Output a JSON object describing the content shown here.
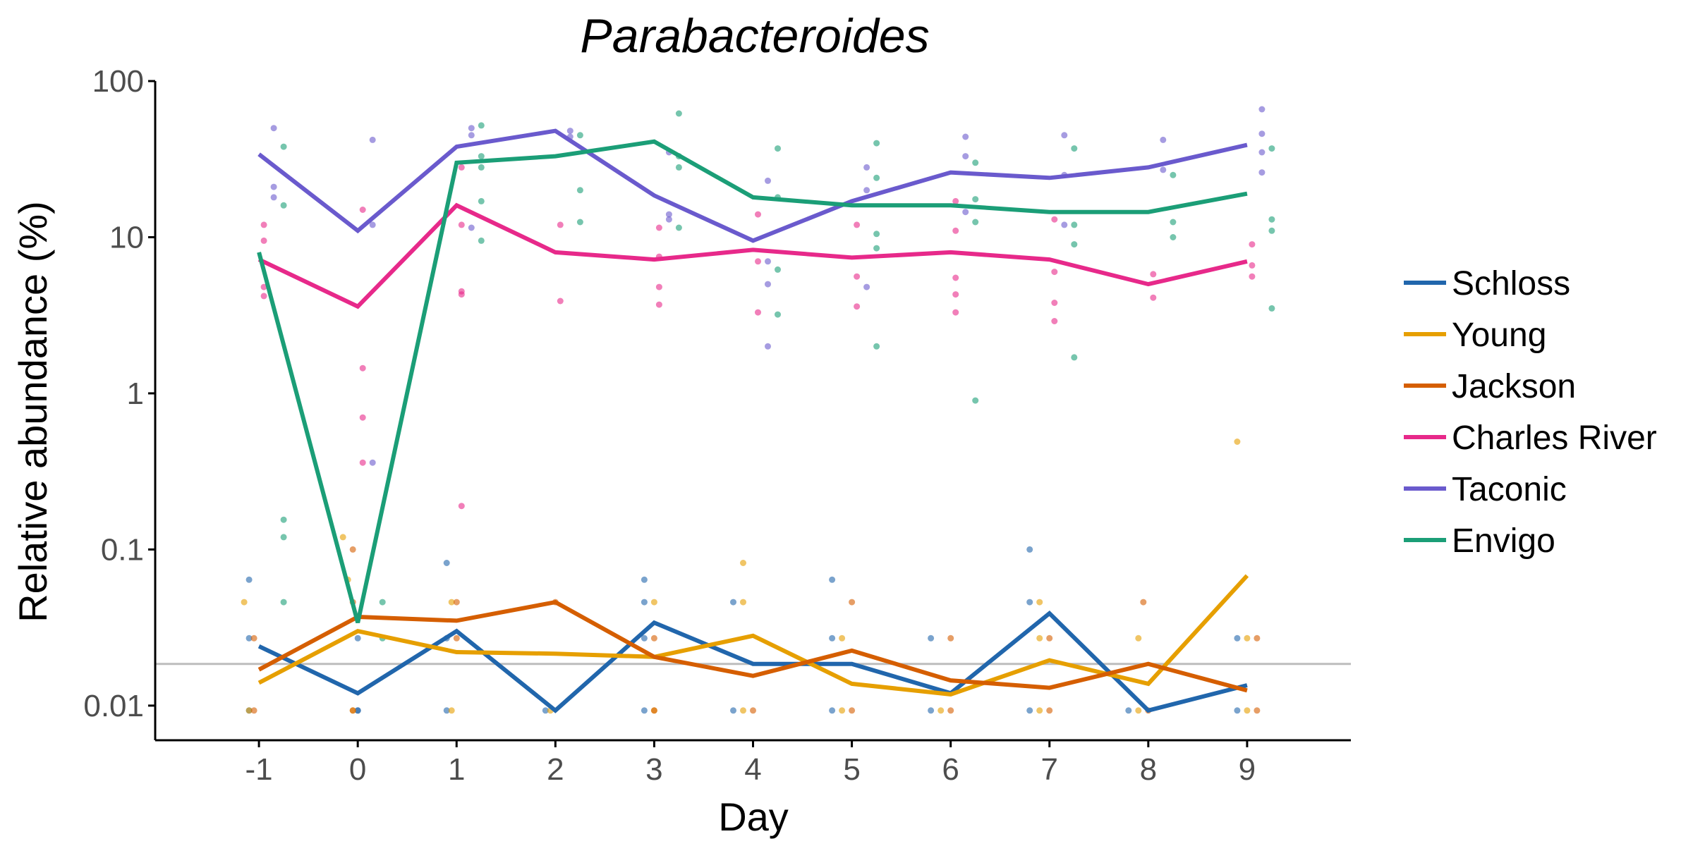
{
  "chart_data": {
    "type": "line",
    "title": "Parabacteroides",
    "xlabel": "Day",
    "ylabel": "Relative abundance (%)",
    "yscale": "log",
    "ylim": [
      0.006,
      100
    ],
    "xlim": [
      -2.05,
      10.05
    ],
    "x": [
      -1,
      0,
      1,
      2,
      3,
      4,
      5,
      6,
      7,
      8,
      9
    ],
    "xticks": [
      "-1",
      "0",
      "1",
      "2",
      "3",
      "4",
      "5",
      "6",
      "7",
      "8",
      "9"
    ],
    "yticks": [
      {
        "value": 0.01,
        "label": "0.01"
      },
      {
        "value": 0.1,
        "label": "0.1"
      },
      {
        "value": 1,
        "label": "1"
      },
      {
        "value": 10,
        "label": "10"
      },
      {
        "value": 100,
        "label": "100"
      }
    ],
    "reference_line": {
      "y": 0.0185,
      "color": "#bdbdbd"
    },
    "legend_position": "right",
    "grid": false,
    "series": [
      {
        "name": "Schloss",
        "color": "#2166ac",
        "values": [
          0.024,
          0.012,
          0.03,
          0.0093,
          0.034,
          0.0185,
          0.0185,
          0.012,
          0.039,
          0.0093,
          0.0135
        ]
      },
      {
        "name": "Young",
        "color": "#e69f00",
        "values": [
          0.014,
          0.03,
          0.022,
          0.0215,
          0.0205,
          0.028,
          0.0138,
          0.0118,
          0.0195,
          0.0138,
          0.068
        ]
      },
      {
        "name": "Jackson",
        "color": "#d55e00",
        "values": [
          0.017,
          0.037,
          0.035,
          0.046,
          0.0205,
          0.0155,
          0.0225,
          0.0145,
          0.013,
          0.0185,
          0.0125
        ]
      },
      {
        "name": "Charles River",
        "color": "#e7298a",
        "values": [
          7.2,
          3.6,
          16.0,
          8.0,
          7.2,
          8.3,
          7.4,
          8.0,
          7.2,
          5.0,
          7.0
        ]
      },
      {
        "name": "Taconic",
        "color": "#6a5acd",
        "values": [
          34.0,
          11.0,
          38.0,
          48.0,
          18.5,
          9.5,
          17.0,
          26.0,
          24.0,
          28.0,
          39.0
        ]
      },
      {
        "name": "Envigo",
        "color": "#1b9e77",
        "values": [
          8.0,
          0.034,
          30.0,
          33.0,
          41.0,
          18.0,
          16.0,
          16.0,
          14.5,
          14.5,
          19.0
        ]
      }
    ],
    "points": [
      {
        "series": 0,
        "pts": [
          [
            -1.1,
            0.064
          ],
          [
            -1.1,
            0.027
          ],
          [
            -1.1,
            0.0093
          ],
          [
            0,
            0.027
          ],
          [
            0,
            0.0093
          ],
          [
            0,
            0.0093
          ],
          [
            0.9,
            0.082
          ],
          [
            0.9,
            0.027
          ],
          [
            0.9,
            0.0093
          ],
          [
            1.9,
            0.0093
          ],
          [
            2.9,
            0.064
          ],
          [
            2.9,
            0.046
          ],
          [
            2.9,
            0.027
          ],
          [
            2.9,
            0.0093
          ],
          [
            3.8,
            0.046
          ],
          [
            3.8,
            0.0093
          ],
          [
            4.8,
            0.064
          ],
          [
            4.8,
            0.027
          ],
          [
            4.8,
            0.0093
          ],
          [
            5.8,
            0.027
          ],
          [
            5.8,
            0.0093
          ],
          [
            6.8,
            0.1
          ],
          [
            6.8,
            0.046
          ],
          [
            6.8,
            0.0093
          ],
          [
            7.8,
            0.0093
          ],
          [
            8.9,
            0.027
          ],
          [
            8.9,
            0.0093
          ]
        ]
      },
      {
        "series": 1,
        "pts": [
          [
            -1.15,
            0.046
          ],
          [
            -1.1,
            0.0093
          ],
          [
            -0.15,
            0.12
          ],
          [
            -0.1,
            0.064
          ],
          [
            -0.05,
            0.0093
          ],
          [
            0.95,
            0.046
          ],
          [
            0.95,
            0.0093
          ],
          [
            1.95,
            0.0093
          ],
          [
            3.0,
            0.046
          ],
          [
            3.0,
            0.0093
          ],
          [
            3.9,
            0.082
          ],
          [
            3.9,
            0.046
          ],
          [
            3.9,
            0.0093
          ],
          [
            4.9,
            0.027
          ],
          [
            4.9,
            0.0093
          ],
          [
            5.9,
            0.0093
          ],
          [
            6.9,
            0.046
          ],
          [
            6.9,
            0.027
          ],
          [
            6.9,
            0.0093
          ],
          [
            7.9,
            0.027
          ],
          [
            7.9,
            0.0093
          ],
          [
            8.9,
            0.49
          ],
          [
            9.0,
            0.027
          ],
          [
            9.0,
            0.0093
          ]
        ]
      },
      {
        "series": 2,
        "pts": [
          [
            -1.05,
            0.027
          ],
          [
            -1.05,
            0.0093
          ],
          [
            -0.05,
            0.1
          ],
          [
            -0.05,
            0.046
          ],
          [
            -0.05,
            0.0093
          ],
          [
            1.0,
            0.046
          ],
          [
            1.0,
            0.027
          ],
          [
            2.0,
            0.046
          ],
          [
            3.0,
            0.027
          ],
          [
            3.0,
            0.0093
          ],
          [
            4.0,
            0.0093
          ],
          [
            5.0,
            0.046
          ],
          [
            5.0,
            0.0093
          ],
          [
            6.0,
            0.027
          ],
          [
            6.0,
            0.0093
          ],
          [
            7.0,
            0.027
          ],
          [
            7.0,
            0.0093
          ],
          [
            7.95,
            0.046
          ],
          [
            8.0,
            0.0093
          ],
          [
            9.1,
            0.027
          ],
          [
            9.1,
            0.0093
          ]
        ]
      },
      {
        "series": 3,
        "pts": [
          [
            -0.95,
            12.0
          ],
          [
            -0.95,
            9.5
          ],
          [
            -0.95,
            4.8
          ],
          [
            -0.95,
            4.2
          ],
          [
            0.05,
            15.0
          ],
          [
            0.05,
            1.45
          ],
          [
            0.05,
            0.7
          ],
          [
            0.05,
            0.36
          ],
          [
            1.05,
            28.0
          ],
          [
            1.05,
            12.0
          ],
          [
            1.05,
            4.5
          ],
          [
            1.05,
            4.3
          ],
          [
            1.05,
            0.19
          ],
          [
            2.05,
            12.0
          ],
          [
            2.05,
            3.9
          ],
          [
            3.05,
            11.5
          ],
          [
            3.05,
            7.5
          ],
          [
            3.05,
            4.8
          ],
          [
            3.05,
            3.7
          ],
          [
            4.05,
            14.0
          ],
          [
            4.05,
            7.0
          ],
          [
            4.05,
            3.3
          ],
          [
            5.05,
            12.0
          ],
          [
            5.05,
            5.6
          ],
          [
            5.05,
            3.6
          ],
          [
            6.05,
            17.0
          ],
          [
            6.05,
            11.0
          ],
          [
            6.05,
            5.5
          ],
          [
            6.05,
            4.3
          ],
          [
            6.05,
            3.3
          ],
          [
            7.05,
            13.0
          ],
          [
            7.05,
            6.0
          ],
          [
            7.05,
            3.8
          ],
          [
            7.05,
            2.9
          ],
          [
            8.05,
            5.8
          ],
          [
            8.05,
            4.1
          ],
          [
            9.05,
            9.0
          ],
          [
            9.05,
            6.6
          ],
          [
            9.05,
            5.6
          ]
        ]
      },
      {
        "series": 4,
        "pts": [
          [
            -0.85,
            50.0
          ],
          [
            -0.85,
            21.0
          ],
          [
            -0.85,
            18.0
          ],
          [
            0.15,
            42.0
          ],
          [
            0.15,
            12.0
          ],
          [
            0.15,
            0.36
          ],
          [
            1.15,
            50.0
          ],
          [
            1.15,
            45.0
          ],
          [
            1.15,
            11.5
          ],
          [
            2.15,
            48.0
          ],
          [
            2.15,
            44.0
          ],
          [
            3.15,
            35.0
          ],
          [
            3.15,
            14.0
          ],
          [
            3.15,
            13.0
          ],
          [
            4.15,
            23.0
          ],
          [
            4.15,
            7.0
          ],
          [
            4.15,
            5.0
          ],
          [
            4.15,
            2.0
          ],
          [
            5.15,
            28.0
          ],
          [
            5.15,
            20.0
          ],
          [
            5.15,
            4.8
          ],
          [
            6.15,
            44.0
          ],
          [
            6.15,
            33.0
          ],
          [
            6.15,
            14.5
          ],
          [
            7.15,
            45.0
          ],
          [
            7.15,
            25.0
          ],
          [
            7.15,
            12.0
          ],
          [
            8.15,
            42.0
          ],
          [
            8.15,
            27.0
          ],
          [
            9.15,
            66.0
          ],
          [
            9.15,
            46.0
          ],
          [
            9.15,
            35.0
          ],
          [
            9.15,
            26.0
          ]
        ]
      },
      {
        "series": 5,
        "pts": [
          [
            -0.75,
            38.0
          ],
          [
            -0.75,
            16.0
          ],
          [
            -0.75,
            0.155
          ],
          [
            -0.75,
            0.12
          ],
          [
            -0.75,
            0.046
          ],
          [
            0.25,
            0.046
          ],
          [
            0.25,
            0.027
          ],
          [
            1.25,
            52.0
          ],
          [
            1.25,
            33.0
          ],
          [
            1.25,
            28.0
          ],
          [
            1.25,
            17.0
          ],
          [
            1.25,
            9.5
          ],
          [
            2.25,
            45.0
          ],
          [
            2.25,
            20.0
          ],
          [
            2.25,
            12.5
          ],
          [
            3.25,
            62.0
          ],
          [
            3.25,
            33.0
          ],
          [
            3.25,
            28.0
          ],
          [
            3.25,
            11.5
          ],
          [
            4.25,
            37.0
          ],
          [
            4.25,
            18.0
          ],
          [
            4.25,
            6.2
          ],
          [
            4.25,
            3.2
          ],
          [
            5.25,
            40.0
          ],
          [
            5.25,
            24.0
          ],
          [
            5.25,
            10.5
          ],
          [
            5.25,
            8.5
          ],
          [
            5.25,
            2.0
          ],
          [
            6.25,
            30.0
          ],
          [
            6.25,
            17.5
          ],
          [
            6.25,
            12.5
          ],
          [
            6.25,
            0.9
          ],
          [
            7.25,
            37.0
          ],
          [
            7.25,
            12.0
          ],
          [
            7.25,
            9.0
          ],
          [
            7.25,
            1.7
          ],
          [
            8.25,
            25.0
          ],
          [
            8.25,
            12.5
          ],
          [
            8.25,
            10.0
          ],
          [
            9.25,
            37.0
          ],
          [
            9.25,
            13.0
          ],
          [
            9.25,
            11.0
          ],
          [
            9.25,
            3.5
          ]
        ]
      }
    ]
  }
}
